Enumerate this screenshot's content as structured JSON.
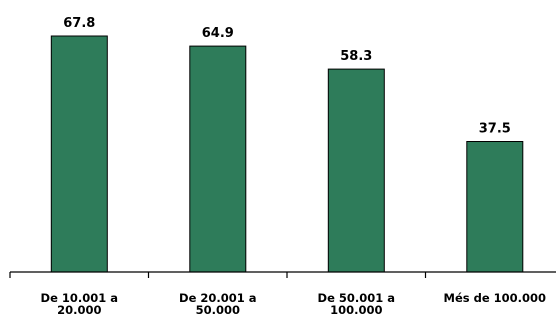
{
  "chart_data": {
    "type": "bar",
    "title": "",
    "xlabel": "",
    "ylabel": "",
    "categories": [
      [
        "De 10.001 a",
        "20.000"
      ],
      [
        "De 20.001 a",
        "50.000"
      ],
      [
        "De 50.001 a",
        "100.000"
      ],
      [
        "Més de 100.000"
      ]
    ],
    "values": [
      67.8,
      64.9,
      58.3,
      37.5
    ],
    "value_labels": [
      "67.8",
      "64.9",
      "58.3",
      "37.5"
    ],
    "ylim": [
      0,
      72
    ],
    "grid": false,
    "legend": "none",
    "colors": {
      "bar": "#2e7c5a",
      "bar_outline": "#000000",
      "axis": "#000000",
      "text": "#000000",
      "background": "#ffffff"
    }
  }
}
